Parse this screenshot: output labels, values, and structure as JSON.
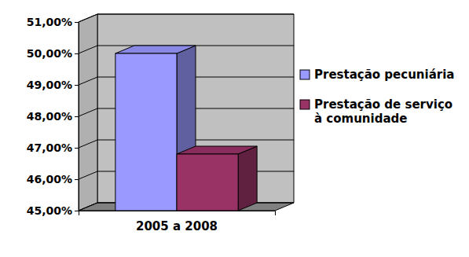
{
  "chart_data": {
    "type": "bar",
    "categories": [
      "2005 a 2008"
    ],
    "series": [
      {
        "name": "Prestação pecuniária",
        "color": "#9999ff",
        "values": [
          50.0
        ]
      },
      {
        "name": "Prestação de serviço à comunidade",
        "color": "#993366",
        "values": [
          46.8
        ]
      }
    ],
    "ylim": [
      45,
      51
    ],
    "yticks": [
      {
        "value": 45,
        "label": "45,00%"
      },
      {
        "value": 46,
        "label": "46,00%"
      },
      {
        "value": 47,
        "label": "47,00%"
      },
      {
        "value": 48,
        "label": "48,00%"
      },
      {
        "value": 49,
        "label": "49,00%"
      },
      {
        "value": 50,
        "label": "50,00%"
      },
      {
        "value": 51,
        "label": "51,00%"
      }
    ],
    "grid": true,
    "legend": "right"
  }
}
